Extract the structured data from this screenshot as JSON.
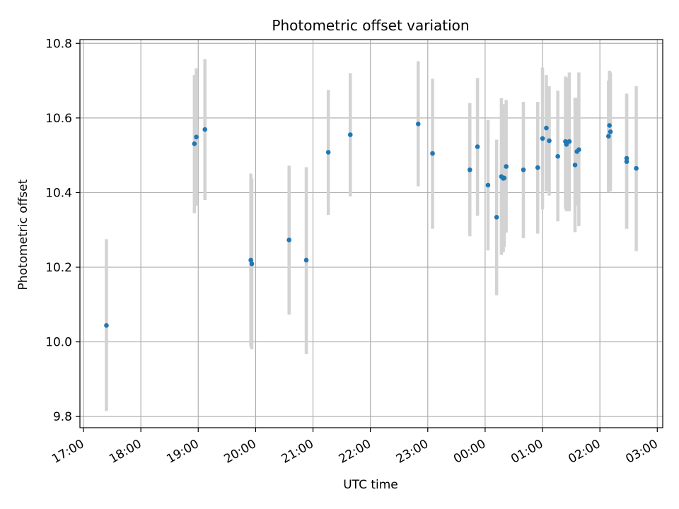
{
  "chart_data": {
    "type": "scatter",
    "title": "Photometric offset variation",
    "xlabel": "UTC time",
    "ylabel": "Photometric offset",
    "grid": true,
    "x_unit": "UTC time (HH:MM)",
    "xlim": [
      "17:00",
      "03:02"
    ],
    "ylim": [
      9.77,
      10.81
    ],
    "x_ticks": [
      "17:00",
      "18:00",
      "19:00",
      "20:00",
      "21:00",
      "22:00",
      "23:00",
      "00:00",
      "01:00",
      "02:00",
      "03:00"
    ],
    "y_ticks": [
      9.8,
      10.0,
      10.2,
      10.4,
      10.6,
      10.8
    ],
    "y_tick_labels": [
      "9.8",
      "10.0",
      "10.2",
      "10.4",
      "10.6",
      "10.8"
    ],
    "marker_color": "#1f77b4",
    "errorbar_color": "#d3d3d3",
    "points": [
      {
        "x": "17:24",
        "y": 10.044,
        "err_low": 9.815,
        "err_high": 10.275
      },
      {
        "x": "18:56",
        "y": 10.531,
        "err_low": 10.345,
        "err_high": 10.715
      },
      {
        "x": "18:58",
        "y": 10.549,
        "err_low": 10.365,
        "err_high": 10.733
      },
      {
        "x": "19:07",
        "y": 10.569,
        "err_low": 10.38,
        "err_high": 10.758
      },
      {
        "x": "19:55",
        "y": 10.219,
        "err_low": 9.987,
        "err_high": 10.451
      },
      {
        "x": "19:56",
        "y": 10.209,
        "err_low": 9.98,
        "err_high": 10.438
      },
      {
        "x": "20:35",
        "y": 10.273,
        "err_low": 10.073,
        "err_high": 10.472
      },
      {
        "x": "20:53",
        "y": 10.219,
        "err_low": 9.967,
        "err_high": 10.468
      },
      {
        "x": "21:16",
        "y": 10.508,
        "err_low": 10.34,
        "err_high": 10.675
      },
      {
        "x": "21:39",
        "y": 10.555,
        "err_low": 10.39,
        "err_high": 10.72
      },
      {
        "x": "22:50",
        "y": 10.584,
        "err_low": 10.417,
        "err_high": 10.752
      },
      {
        "x": "23:05",
        "y": 10.505,
        "err_low": 10.303,
        "err_high": 10.705
      },
      {
        "x": "23:44",
        "y": 10.461,
        "err_low": 10.283,
        "err_high": 10.64
      },
      {
        "x": "23:52",
        "y": 10.523,
        "err_low": 10.338,
        "err_high": 10.707
      },
      {
        "x": "00:03",
        "y": 10.42,
        "err_low": 10.245,
        "err_high": 10.595
      },
      {
        "x": "00:12",
        "y": 10.334,
        "err_low": 10.125,
        "err_high": 10.542
      },
      {
        "x": "00:17",
        "y": 10.443,
        "err_low": 10.233,
        "err_high": 10.653
      },
      {
        "x": "00:19",
        "y": 10.438,
        "err_low": 10.24,
        "err_high": 10.637
      },
      {
        "x": "00:20",
        "y": 10.439,
        "err_low": 10.255,
        "err_high": 10.625
      },
      {
        "x": "00:22",
        "y": 10.47,
        "err_low": 10.293,
        "err_high": 10.648
      },
      {
        "x": "00:40",
        "y": 10.461,
        "err_low": 10.278,
        "err_high": 10.643
      },
      {
        "x": "00:55",
        "y": 10.467,
        "err_low": 10.29,
        "err_high": 10.643
      },
      {
        "x": "01:00",
        "y": 10.545,
        "err_low": 10.355,
        "err_high": 10.735
      },
      {
        "x": "01:04",
        "y": 10.573,
        "err_low": 10.403,
        "err_high": 10.715
      },
      {
        "x": "01:07",
        "y": 10.539,
        "err_low": 10.392,
        "err_high": 10.685
      },
      {
        "x": "01:16",
        "y": 10.497,
        "err_low": 10.323,
        "err_high": 10.673
      },
      {
        "x": "01:24",
        "y": 10.537,
        "err_low": 10.356,
        "err_high": 10.711
      },
      {
        "x": "01:25",
        "y": 10.529,
        "err_low": 10.35,
        "err_high": 10.708
      },
      {
        "x": "01:28",
        "y": 10.537,
        "err_low": 10.35,
        "err_high": 10.722
      },
      {
        "x": "01:34",
        "y": 10.474,
        "err_low": 10.294,
        "err_high": 10.654
      },
      {
        "x": "01:36",
        "y": 10.51,
        "err_low": 10.365,
        "err_high": 10.654
      },
      {
        "x": "01:38",
        "y": 10.515,
        "err_low": 10.31,
        "err_high": 10.722
      },
      {
        "x": "02:09",
        "y": 10.551,
        "err_low": 10.4,
        "err_high": 10.7
      },
      {
        "x": "02:10",
        "y": 10.58,
        "err_low": 10.405,
        "err_high": 10.727
      },
      {
        "x": "02:11",
        "y": 10.563,
        "err_low": 10.404,
        "err_high": 10.722
      },
      {
        "x": "02:28",
        "y": 10.483,
        "err_low": 10.303,
        "err_high": 10.665
      },
      {
        "x": "02:28",
        "y": 10.492,
        "err_low": 10.303,
        "err_high": 10.665
      },
      {
        "x": "02:38",
        "y": 10.465,
        "err_low": 10.243,
        "err_high": 10.685
      }
    ]
  }
}
